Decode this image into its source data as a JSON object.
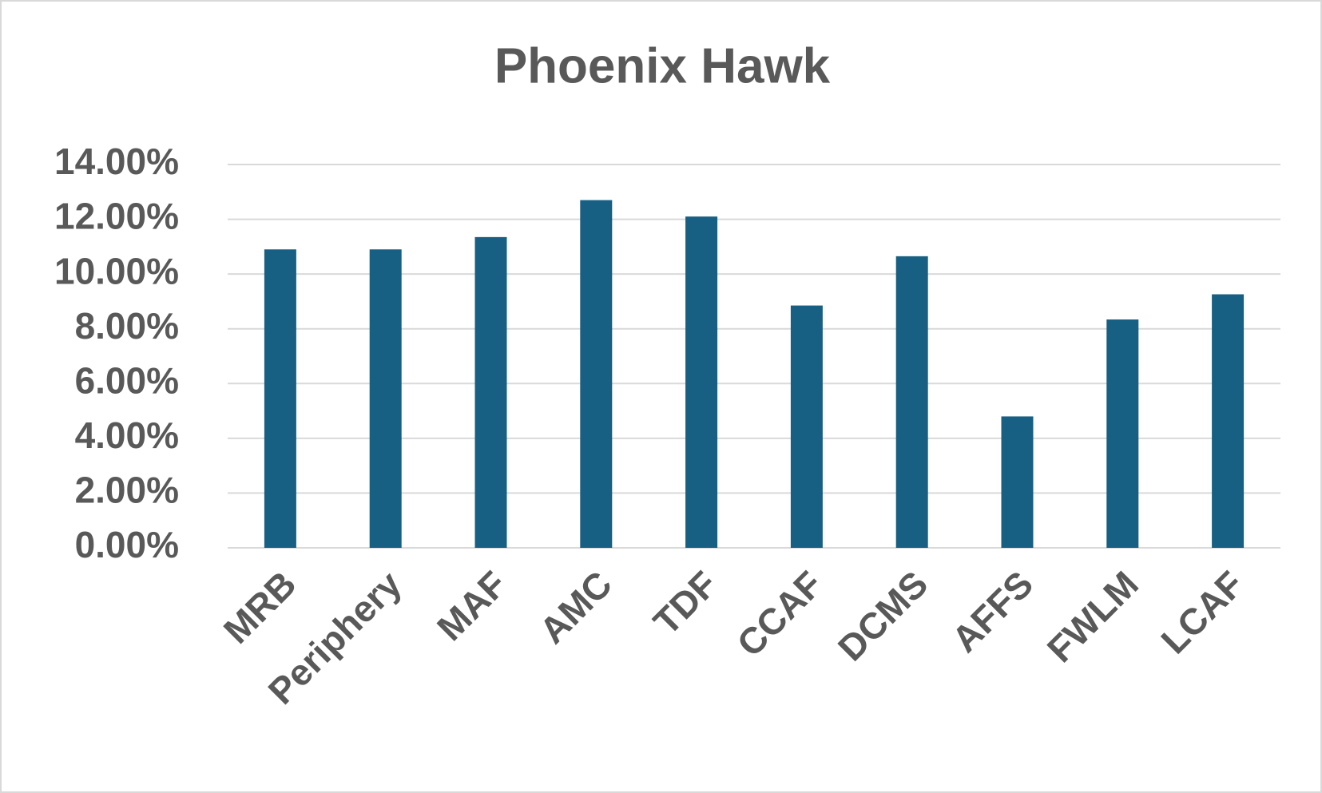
{
  "chart_data": {
    "type": "bar",
    "title": "Phoenix Hawk",
    "categories": [
      "MRB",
      "Periphery",
      "MAF",
      "AMC",
      "TDF",
      "CCAF",
      "DCMS",
      "AFFS",
      "FWLM",
      "LCAF"
    ],
    "values": [
      10.9,
      10.9,
      11.35,
      12.7,
      12.1,
      8.85,
      10.65,
      4.8,
      8.34,
      9.26
    ],
    "color": "#176083",
    "ylim": [
      0,
      14
    ],
    "yticks": [
      {
        "value": 0,
        "label": "0.00%"
      },
      {
        "value": 2,
        "label": "2.00%"
      },
      {
        "value": 4,
        "label": "4.00%"
      },
      {
        "value": 6,
        "label": "6.00%"
      },
      {
        "value": 8,
        "label": "8.00%"
      },
      {
        "value": 10,
        "label": "10.00%"
      },
      {
        "value": 12,
        "label": "12.00%"
      },
      {
        "value": 14,
        "label": "14.00%"
      }
    ],
    "grid": true
  }
}
